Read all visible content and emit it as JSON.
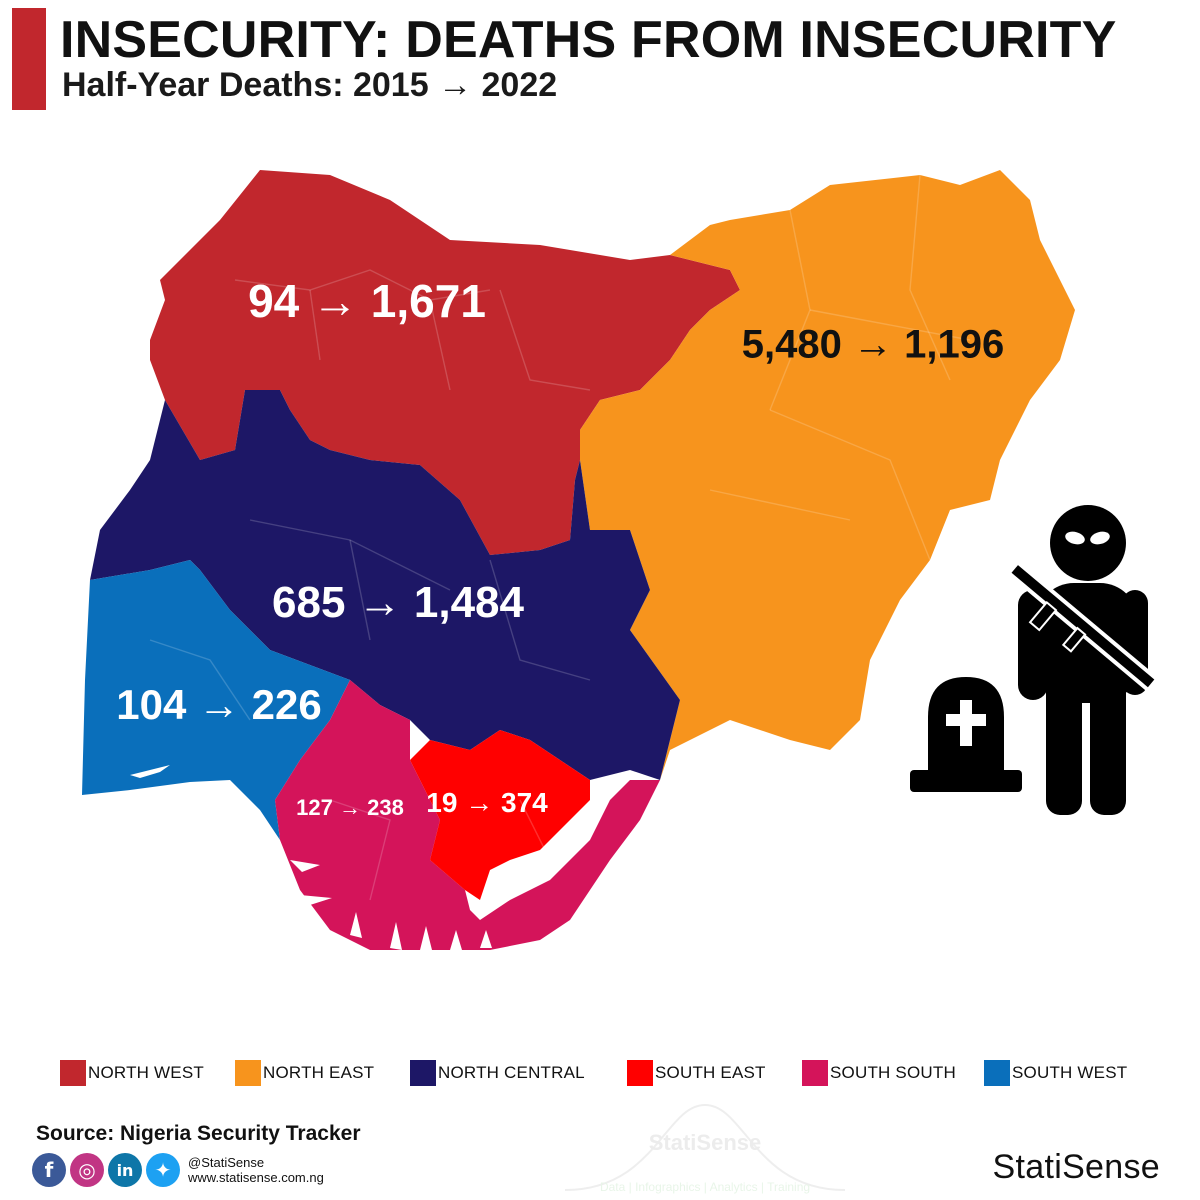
{
  "header": {
    "title": "INSECURITY: DEATHS FROM INSECURITY",
    "subtitle": "Half-Year Deaths: 2015 → 2022",
    "accent_color": "#c1272d"
  },
  "map": {
    "regions": [
      {
        "id": "north-west",
        "name": "NORTH WEST",
        "color": "#c1272d",
        "value_2015": 94,
        "value_2022": 1671,
        "label": "94 → 1,671",
        "label_color": "#ffffff"
      },
      {
        "id": "north-east",
        "name": "NORTH EAST",
        "color": "#f7941d",
        "value_2015": 5480,
        "value_2022": 1196,
        "label": "5,480 → 1,196",
        "label_color": "#111111"
      },
      {
        "id": "north-central",
        "name": "NORTH CENTRAL",
        "color": "#1d1766",
        "value_2015": 685,
        "value_2022": 1484,
        "label": "685 → 1,484",
        "label_color": "#ffffff"
      },
      {
        "id": "south-west",
        "name": "SOUTH WEST",
        "color": "#0a6fbb",
        "value_2015": 104,
        "value_2022": 226,
        "label": "104 → 226",
        "label_color": "#ffffff"
      },
      {
        "id": "south-south",
        "name": "SOUTH SOUTH",
        "color": "#d4145a",
        "value_2015": 127,
        "value_2022": 238,
        "label": "127 → 238",
        "label_color": "#ffffff"
      },
      {
        "id": "south-east",
        "name": "SOUTH EAST",
        "color": "#ff0000",
        "value_2015": 19,
        "value_2022": 374,
        "label": "19 → 374",
        "label_color": "#ffffff"
      }
    ]
  },
  "legend": [
    {
      "label": "NORTH WEST",
      "color": "#c1272d"
    },
    {
      "label": "NORTH EAST",
      "color": "#f7941d"
    },
    {
      "label": "NORTH CENTRAL",
      "color": "#1d1766"
    },
    {
      "label": "SOUTH EAST",
      "color": "#ff0000"
    },
    {
      "label": "SOUTH SOUTH",
      "color": "#d4145a"
    },
    {
      "label": "SOUTH WEST",
      "color": "#0a6fbb"
    }
  ],
  "footer": {
    "source": "Source: Nigeria Security Tracker",
    "handle": "@StatiSense",
    "website": "www.statisense.com.ng",
    "brand": "StatiSense",
    "watermark": "StatiSense",
    "watermark_tagline": "Data | Infographics | Analytics | Training",
    "social_icons": [
      {
        "name": "facebook-icon",
        "glyph": "f",
        "color": "#3b5998"
      },
      {
        "name": "instagram-icon",
        "glyph": "◎",
        "color": "#c13584"
      },
      {
        "name": "linkedin-icon",
        "glyph": "in",
        "color": "#0e76a8"
      },
      {
        "name": "twitter-icon",
        "glyph": "✦",
        "color": "#1da1f2"
      }
    ]
  },
  "icons": [
    "gunman-icon",
    "gravestone-icon"
  ]
}
